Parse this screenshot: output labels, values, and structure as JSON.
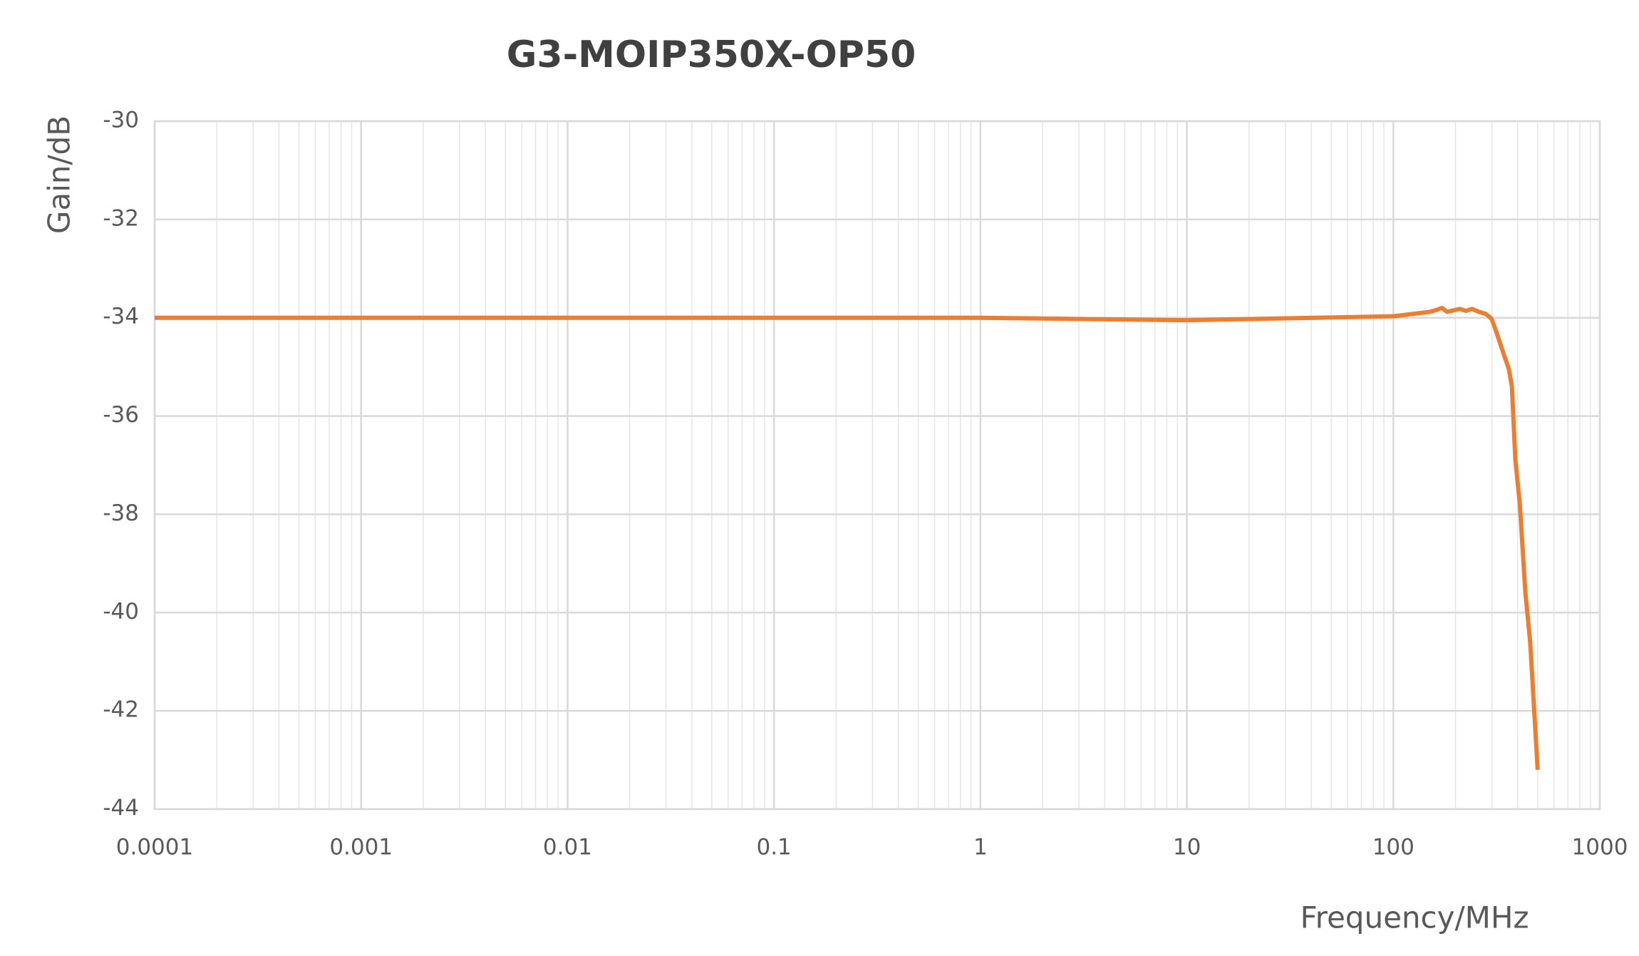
{
  "chart_data": {
    "type": "line",
    "title": "G3-MOIP350X-OP50",
    "x_label": "Frequency/MHz",
    "y_label": "Gain/dB",
    "x_scale": "log",
    "grid": true,
    "minor_grid": true,
    "xlim": [
      0.0001,
      1000
    ],
    "xticks": [
      0.0001,
      0.001,
      0.01,
      0.1,
      1,
      10,
      100,
      1000
    ],
    "ylim": [
      -44,
      -30
    ],
    "yticks": [
      -44,
      -42,
      -40,
      -38,
      -36,
      -34,
      -32,
      -30
    ],
    "series": [
      {
        "name": "Gain",
        "color": "#ed7d31",
        "x": [
          0.0001,
          0.001,
          0.01,
          0.1,
          1,
          10,
          100,
          150,
          162,
          172,
          182,
          195,
          210,
          225,
          240,
          260,
          280,
          299,
          316,
          340,
          363,
          375,
          390,
          410,
          436,
          460,
          500
        ],
        "values": [
          -34,
          -34,
          -34,
          -34,
          -34,
          -34.05,
          -33.97,
          -33.88,
          -33.84,
          -33.8,
          -33.88,
          -33.85,
          -33.82,
          -33.86,
          -33.82,
          -33.88,
          -33.92,
          -34.02,
          -34.3,
          -34.7,
          -35.05,
          -35.4,
          -36.9,
          -37.8,
          -39.6,
          -40.6,
          -43.2
        ]
      }
    ]
  }
}
